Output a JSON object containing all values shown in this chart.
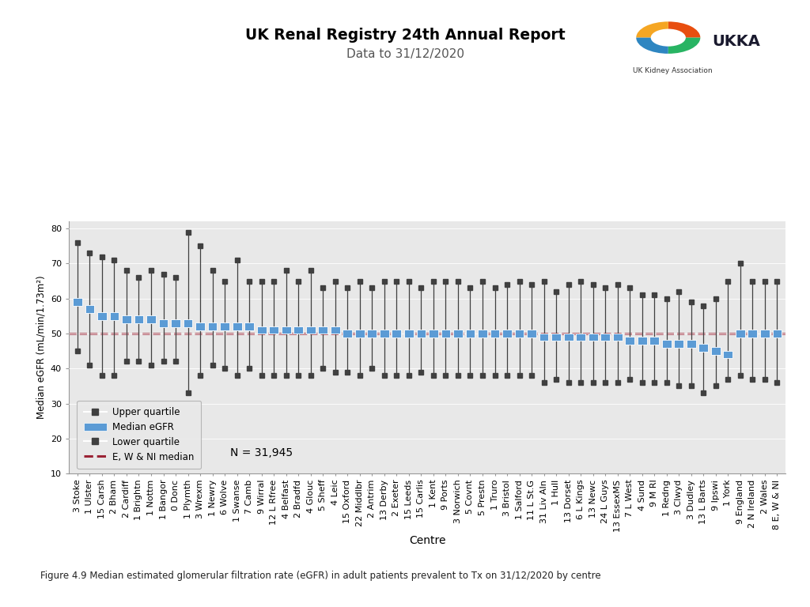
{
  "title": "UK Renal Registry 24th Annual Report",
  "subtitle": "Data to 31/12/2020",
  "xlabel": "Centre",
  "ylabel": "Median eGFR (mL/min/1.73m²)",
  "ni_median": 50.0,
  "n_label": "N = 31,945",
  "ylim": [
    10,
    82
  ],
  "yticks": [
    10,
    20,
    30,
    40,
    50,
    60,
    70,
    80
  ],
  "figure_caption": "Figure 4.9 Median estimated glomerular filtration rate (eGFR) in adult patients prevalent to Tx on 31/12/2020 by centre",
  "centres": [
    "3 Stoke",
    "1 Ulster",
    "15 Carsh",
    "2 Bham",
    "2 Cardiff",
    "1 Brightn",
    "1 Nottm",
    "1 Bangor",
    "0 Donc",
    "1 Plymth",
    "3 Wrexm",
    "1 Newry",
    "6 Wolve",
    "1 Swanse",
    "7 Camb",
    "9 Wirral",
    "12 L Rfree",
    "4 Belfast",
    "2 Bradfd",
    "4 Glouc",
    "5 Sheff",
    "4 Leic",
    "15 Oxford",
    "22 Middlbr",
    "2 Antrim",
    "13 Derby",
    "2 Exeter",
    "15 Leeds",
    "15 Carlis",
    "1 Kent",
    "9 Ports",
    "3 Norwich",
    "5 Covnt",
    "5 Prestn",
    "1 Truro",
    "3 Bristol",
    "1 Salford",
    "11 L St.G",
    "31 Liv Aln",
    "1 Hull",
    "13 Dorset",
    "6 L Kings",
    "13 Newc",
    "24 L Guys",
    "13 EssexMS",
    "7 L West",
    "4 Sund",
    "9 M RI",
    "1 Redng",
    "3 Clwyd",
    "3 Dudley",
    "13 L Barts",
    "9 Ipswi",
    "1 York",
    "9 England",
    "2 N Ireland",
    "2 Wales",
    "8 E, W & NI"
  ],
  "medians": [
    59,
    57,
    55,
    55,
    54,
    54,
    54,
    53,
    53,
    53,
    52,
    52,
    52,
    52,
    52,
    51,
    51,
    51,
    51,
    51,
    51,
    51,
    50,
    50,
    50,
    50,
    50,
    50,
    50,
    50,
    50,
    50,
    50,
    50,
    50,
    50,
    50,
    50,
    49,
    49,
    49,
    49,
    49,
    49,
    49,
    48,
    48,
    48,
    47,
    47,
    47,
    46,
    45,
    44,
    50,
    50,
    50,
    50
  ],
  "upper_quartiles": [
    76,
    73,
    72,
    71,
    68,
    66,
    68,
    67,
    66,
    79,
    75,
    68,
    65,
    71,
    65,
    65,
    65,
    68,
    65,
    68,
    63,
    65,
    63,
    65,
    63,
    65,
    65,
    65,
    63,
    65,
    65,
    65,
    63,
    65,
    63,
    64,
    65,
    64,
    65,
    62,
    64,
    65,
    64,
    63,
    64,
    63,
    61,
    61,
    60,
    62,
    59,
    58,
    60,
    65,
    70,
    65,
    65,
    65
  ],
  "lower_quartiles": [
    45,
    41,
    38,
    38,
    42,
    42,
    41,
    42,
    42,
    33,
    38,
    41,
    40,
    38,
    40,
    38,
    38,
    38,
    38,
    38,
    40,
    39,
    39,
    38,
    40,
    38,
    38,
    38,
    39,
    38,
    38,
    38,
    38,
    38,
    38,
    38,
    38,
    38,
    36,
    37,
    36,
    36,
    36,
    36,
    36,
    37,
    36,
    36,
    36,
    35,
    35,
    33,
    35,
    37,
    38,
    37,
    37,
    36
  ],
  "background_color": "#e8e8e8",
  "plot_area_color": "#e8e8e8",
  "bar_color": "#5b9bd5",
  "line_color": "#404040",
  "dashed_color": "#9b2335",
  "legend_box_color": "#e8e8e8"
}
